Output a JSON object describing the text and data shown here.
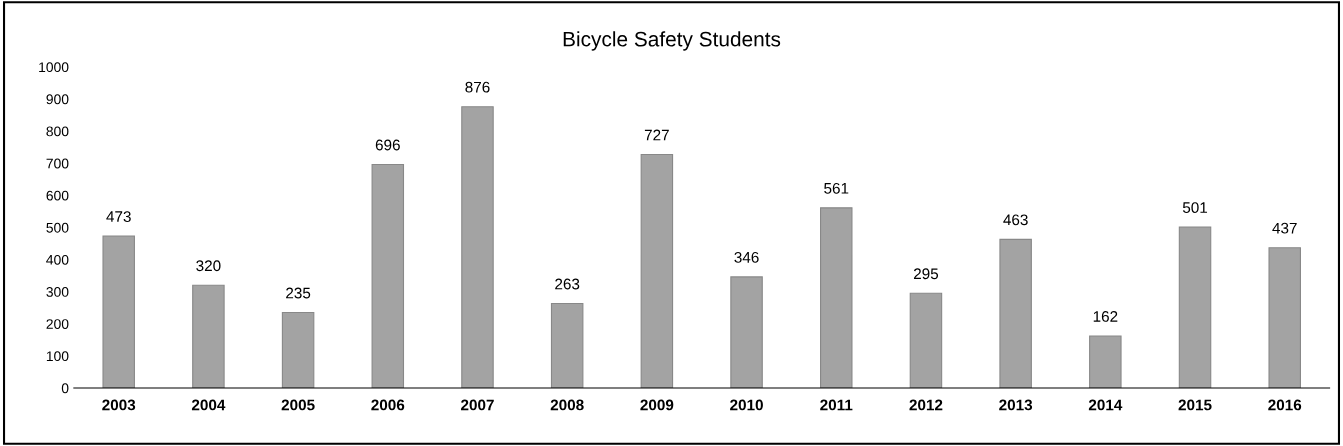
{
  "chart_data": {
    "type": "bar",
    "title": "Bicycle Safety Students",
    "categories": [
      "2003",
      "2004",
      "2005",
      "2006",
      "2007",
      "2008",
      "2009",
      "2010",
      "2011",
      "2012",
      "2013",
      "2014",
      "2015",
      "2016"
    ],
    "values": [
      473,
      320,
      235,
      696,
      876,
      263,
      727,
      346,
      561,
      295,
      463,
      162,
      501,
      437
    ],
    "color": "#a3a3a3",
    "ylim": [
      0,
      1000
    ],
    "yticks": [
      0,
      100,
      200,
      300,
      400,
      500,
      600,
      700,
      800,
      900,
      1000
    ],
    "grid": false,
    "data_labels": true
  }
}
